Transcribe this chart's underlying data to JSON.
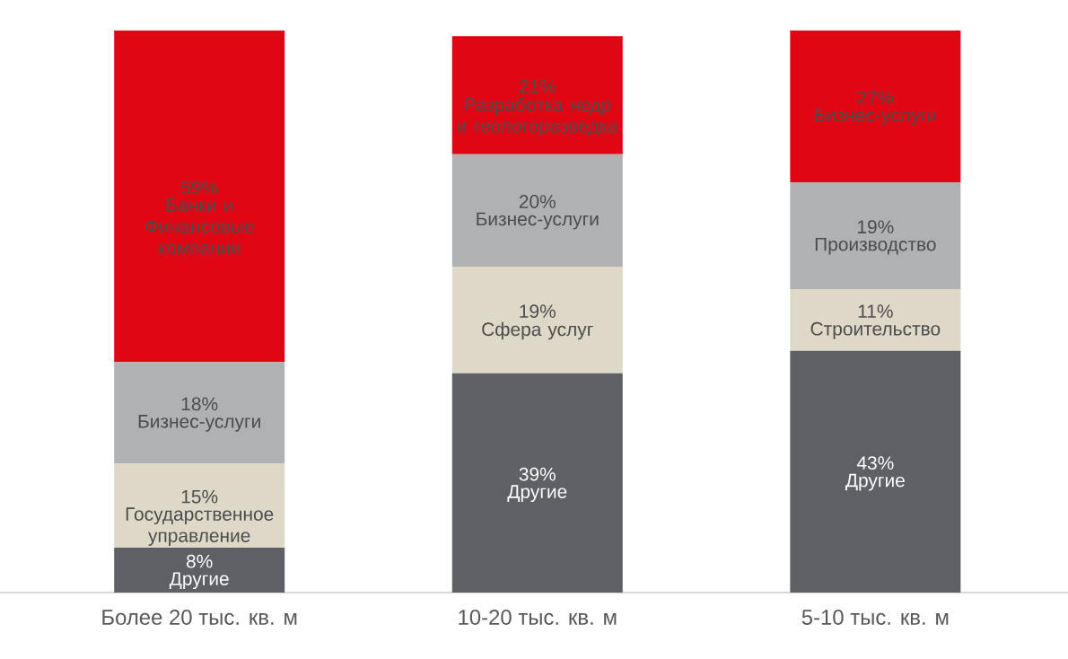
{
  "chart_data": {
    "type": "bar",
    "stacked": true,
    "categories": [
      "Более 20 тыс. кв. м",
      "10-20 тыс. кв. м",
      "5-10 тыс. кв. м"
    ],
    "series": [
      {
        "color": "#5f6066",
        "values": [
          8,
          39,
          43
        ],
        "value_labels": [
          "8%",
          "39%",
          "43%"
        ]
      },
      {
        "color": "#ddd8c8",
        "values": [
          15,
          19,
          11
        ],
        "value_labels": [
          "15%",
          "19%",
          "11%"
        ]
      },
      {
        "color": "#b0b1b3",
        "values": [
          18,
          20,
          19
        ],
        "value_labels": [
          "18%",
          "20%",
          "19%"
        ]
      },
      {
        "color": "#e10613",
        "values": [
          59,
          21,
          27
        ],
        "value_labels": [
          "59%",
          "21%",
          "27%"
        ]
      }
    ],
    "annotations": [
      "Другие",
      "Другие",
      "Другие",
      "Государственное управление",
      "Сфера услуг",
      "Строительство",
      "Бизнес-услуги",
      "Бизнес-услуги",
      "Производство",
      "Банки и Финансовые компании",
      "Разработка недр и геологоразведка",
      "Бизнес-услуги"
    ]
  }
}
